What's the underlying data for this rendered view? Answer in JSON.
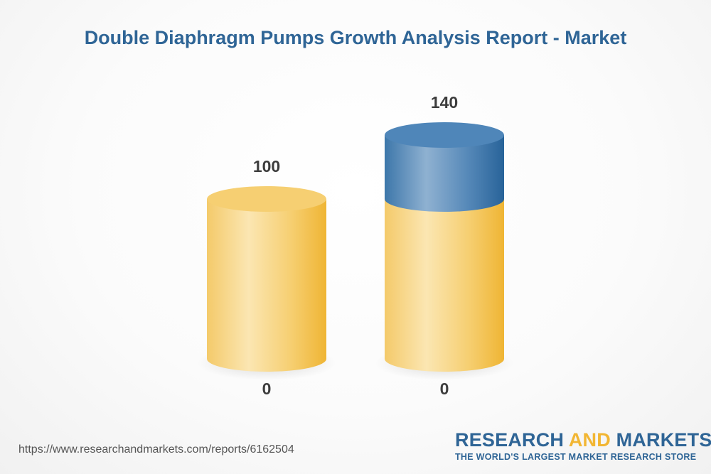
{
  "chart_data": {
    "type": "bar",
    "title": "Double Diaphragm Pumps Growth Analysis Report - Market",
    "categories": [
      "",
      ""
    ],
    "series": [
      {
        "values": [
          100,
          100
        ],
        "color": "#f2b633"
      },
      {
        "values": [
          0,
          40
        ],
        "color": "#2f6596"
      }
    ],
    "top_labels": [
      "100",
      "140"
    ],
    "base_labels": [
      "0",
      "0"
    ],
    "ylim": [
      0,
      140
    ],
    "grid": false,
    "legend": "none"
  },
  "footer": {
    "source_url": "https://www.researchandmarkets.com/reports/6162504"
  },
  "brand": {
    "name_part1": "RESEARCH ",
    "name_accent": "AND",
    "name_part2": " MARKETS",
    "tagline": "THE WORLD'S LARGEST MARKET RESEARCH STORE",
    "accent_color": "#f2b633",
    "primary_color": "#2f6596"
  }
}
